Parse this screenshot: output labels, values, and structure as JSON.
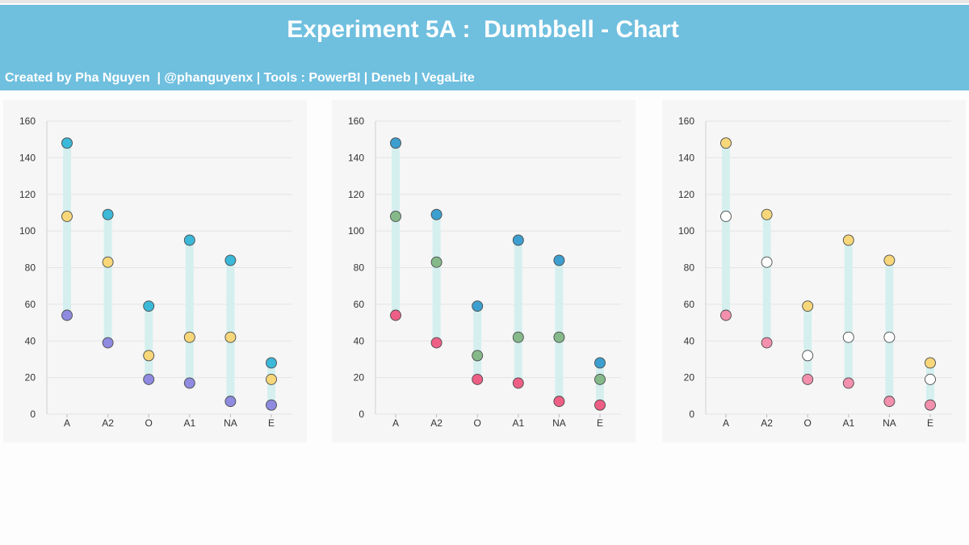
{
  "header": {
    "title": "Experiment 5A :  Dumbbell - Chart",
    "credit": "Created by Pha Nguyen  | @phanguyenx | Tools : PowerBI | Deneb | VegaLite"
  },
  "chart_data": [
    {
      "type": "dumbbell",
      "title": "",
      "xlabel": "",
      "ylabel": "",
      "ylim": [
        0,
        160
      ],
      "yticks": [
        0,
        20,
        40,
        60,
        80,
        100,
        120,
        140,
        160
      ],
      "grid": true,
      "categories": [
        "A",
        "A2",
        "O",
        "A1",
        "NA",
        "E"
      ],
      "series": [
        {
          "color": "#3cb8d8",
          "values": [
            148,
            109,
            59,
            95,
            84,
            28
          ]
        },
        {
          "color": "#f7d77a",
          "values": [
            108,
            83,
            32,
            42,
            42,
            19
          ]
        },
        {
          "color": "#8e8be0",
          "values": [
            54,
            39,
            19,
            17,
            7,
            5
          ]
        }
      ],
      "range_color": "#d5efef"
    },
    {
      "type": "dumbbell",
      "title": "",
      "xlabel": "",
      "ylabel": "",
      "ylim": [
        0,
        160
      ],
      "yticks": [
        0,
        20,
        40,
        60,
        80,
        100,
        120,
        140,
        160
      ],
      "grid": true,
      "categories": [
        "A",
        "A2",
        "O",
        "A1",
        "NA",
        "E"
      ],
      "series": [
        {
          "color": "#3d9fd0",
          "values": [
            148,
            109,
            59,
            95,
            84,
            28
          ]
        },
        {
          "color": "#86b98a",
          "values": [
            108,
            83,
            32,
            42,
            42,
            19
          ]
        },
        {
          "color": "#ee5f85",
          "values": [
            54,
            39,
            19,
            17,
            7,
            5
          ]
        }
      ],
      "range_color": "#d5efef"
    },
    {
      "type": "dumbbell",
      "title": "",
      "xlabel": "",
      "ylabel": "",
      "ylim": [
        0,
        160
      ],
      "yticks": [
        0,
        20,
        40,
        60,
        80,
        100,
        120,
        140,
        160
      ],
      "grid": true,
      "categories": [
        "A",
        "A2",
        "O",
        "A1",
        "NA",
        "E"
      ],
      "series": [
        {
          "color": "#f7d77a",
          "values": [
            148,
            109,
            59,
            95,
            84,
            28
          ]
        },
        {
          "color": "#ffffff",
          "values": [
            108,
            83,
            32,
            42,
            42,
            19
          ]
        },
        {
          "color": "#f390ad",
          "values": [
            54,
            39,
            19,
            17,
            7,
            5
          ]
        }
      ],
      "range_color": "#d5efef"
    }
  ]
}
